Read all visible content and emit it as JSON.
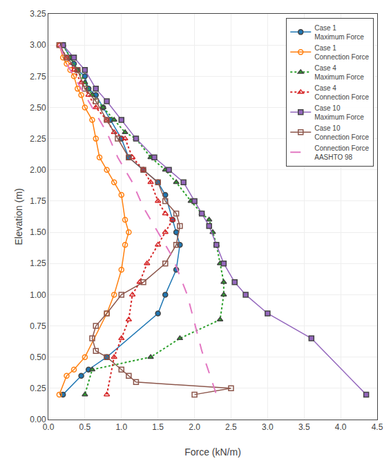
{
  "chart_data": {
    "type": "line",
    "xlabel": "Force (kN/m)",
    "ylabel": "Elevation (m)",
    "xlim": [
      0,
      4.5
    ],
    "ylim": [
      0,
      3.25
    ],
    "xticks": [
      {
        "value": 0.0,
        "label": "0.0"
      },
      0.5,
      {
        "value": 1.0,
        "label": "1.0"
      },
      1.5,
      {
        "value": 2.0,
        "label": "2.0"
      },
      2.5,
      {
        "value": 3.0,
        "label": "3.0"
      },
      3.5,
      {
        "value": 4.0,
        "label": "4.0"
      },
      4.5
    ],
    "yticks": [
      {
        "value": 0,
        "label": "0.00"
      },
      0.25,
      {
        "value": 0.5,
        "label": "0.50"
      },
      0.75,
      {
        "value": 1.0,
        "label": "1.00"
      },
      1.25,
      {
        "value": 1.5,
        "label": "1.50"
      },
      1.75,
      {
        "value": 2.0,
        "label": "2.00"
      },
      2.25,
      {
        "value": 2.5,
        "label": "2.50"
      },
      2.75,
      {
        "value": 3.0,
        "label": "3.00"
      },
      3.25
    ],
    "grid": true,
    "legend": "upper right",
    "series": [
      {
        "name": "Case 1\nMaximum Force",
        "marker": "circle",
        "line_style": "solid",
        "x": [
          0.2,
          0.3,
          0.35,
          0.4,
          0.5,
          0.55,
          0.65,
          0.75,
          0.85,
          1.0,
          1.1,
          1.3,
          1.5,
          1.6,
          1.7,
          1.75,
          1.8,
          1.75,
          1.6,
          1.5,
          0.8,
          0.55,
          0.45,
          0.2
        ],
        "values": [
          3.0,
          2.9,
          2.85,
          2.8,
          2.75,
          2.65,
          2.6,
          2.5,
          2.4,
          2.25,
          2.1,
          2.0,
          1.9,
          1.8,
          1.6,
          1.5,
          1.4,
          1.2,
          1.0,
          0.85,
          0.5,
          0.4,
          0.35,
          0.2
        ]
      },
      {
        "name": "Case 1\nConnection Force",
        "marker": "circle-open",
        "line_style": "solid",
        "x": [
          0.15,
          0.2,
          0.25,
          0.3,
          0.35,
          0.4,
          0.45,
          0.5,
          0.6,
          0.65,
          0.7,
          0.8,
          0.9,
          1.0,
          1.05,
          1.1,
          1.05,
          1.0,
          0.9,
          0.8,
          0.5,
          0.35,
          0.25,
          0.15
        ],
        "values": [
          3.0,
          2.9,
          2.85,
          2.8,
          2.75,
          2.65,
          2.6,
          2.5,
          2.4,
          2.25,
          2.1,
          2.0,
          1.9,
          1.8,
          1.6,
          1.5,
          1.4,
          1.2,
          1.0,
          0.85,
          0.5,
          0.4,
          0.35,
          0.2
        ]
      },
      {
        "name": "Case 4\nMaximum Force",
        "marker": "triangle-up",
        "line_style": "dotted",
        "x": [
          0.2,
          0.3,
          0.4,
          0.5,
          0.6,
          0.75,
          0.9,
          1.05,
          1.2,
          1.4,
          1.6,
          1.75,
          1.95,
          2.1,
          2.2,
          2.25,
          2.3,
          2.35,
          2.4,
          2.4,
          2.35,
          1.8,
          1.4,
          0.6,
          0.5
        ],
        "values": [
          3.0,
          2.9,
          2.8,
          2.7,
          2.6,
          2.5,
          2.4,
          2.3,
          2.25,
          2.1,
          2.0,
          1.9,
          1.75,
          1.65,
          1.6,
          1.5,
          1.4,
          1.25,
          1.1,
          1.0,
          0.8,
          0.65,
          0.5,
          0.4,
          0.2
        ]
      },
      {
        "name": "Case 4\nConnection Force",
        "marker": "triangle-up-open",
        "line_style": "dotted",
        "x": [
          0.15,
          0.25,
          0.35,
          0.45,
          0.55,
          0.65,
          0.8,
          0.9,
          1.05,
          1.15,
          1.3,
          1.4,
          1.5,
          1.6,
          1.7,
          1.6,
          1.5,
          1.35,
          1.25,
          1.15,
          1.1,
          1.0,
          0.9,
          0.8
        ],
        "values": [
          3.0,
          2.9,
          2.8,
          2.7,
          2.6,
          2.5,
          2.4,
          2.3,
          2.25,
          2.1,
          2.0,
          1.9,
          1.75,
          1.65,
          1.6,
          1.5,
          1.4,
          1.25,
          1.1,
          1.0,
          0.8,
          0.65,
          0.5,
          0.2
        ]
      },
      {
        "name": "Case 10\nMaximum Force",
        "marker": "square",
        "line_style": "solid",
        "x": [
          0.2,
          0.35,
          0.5,
          0.65,
          0.8,
          1.0,
          1.2,
          1.45,
          1.65,
          1.85,
          2.0,
          2.1,
          2.2,
          2.3,
          2.4,
          2.55,
          2.7,
          3.0,
          3.6,
          4.35
        ],
        "values": [
          3.0,
          2.9,
          2.8,
          2.65,
          2.55,
          2.4,
          2.25,
          2.1,
          2.0,
          1.9,
          1.75,
          1.65,
          1.55,
          1.4,
          1.25,
          1.1,
          1.0,
          0.85,
          0.65,
          0.2
        ]
      },
      {
        "name": "Case 10\nConnection Force",
        "marker": "square-open",
        "line_style": "solid",
        "x": [
          0.15,
          0.25,
          0.4,
          0.5,
          0.65,
          0.8,
          0.95,
          1.1,
          1.3,
          1.5,
          1.6,
          1.75,
          1.8,
          1.75,
          1.6,
          1.3,
          1.0,
          0.8,
          0.65,
          0.6,
          0.65,
          0.8,
          1.0,
          1.1,
          1.2,
          2.5,
          2.0
        ],
        "values": [
          3.0,
          2.9,
          2.8,
          2.65,
          2.55,
          2.4,
          2.25,
          2.1,
          2.0,
          1.9,
          1.75,
          1.65,
          1.55,
          1.4,
          1.25,
          1.1,
          1.0,
          0.85,
          0.75,
          0.65,
          0.55,
          0.5,
          0.4,
          0.35,
          0.3,
          0.25,
          0.2
        ]
      },
      {
        "name": "Connection Force\nAASHTO 98",
        "line_style": "dashed",
        "x": [
          0.15,
          0.25,
          0.35,
          0.5,
          0.65,
          0.8,
          0.95,
          1.05,
          1.15,
          1.3,
          1.5,
          1.7,
          1.9,
          2.1,
          2.3
        ],
        "values": [
          3.0,
          2.85,
          2.75,
          2.6,
          2.45,
          2.3,
          2.1,
          2.0,
          1.9,
          1.7,
          1.5,
          1.3,
          1.0,
          0.55,
          0.2
        ]
      }
    ]
  }
}
